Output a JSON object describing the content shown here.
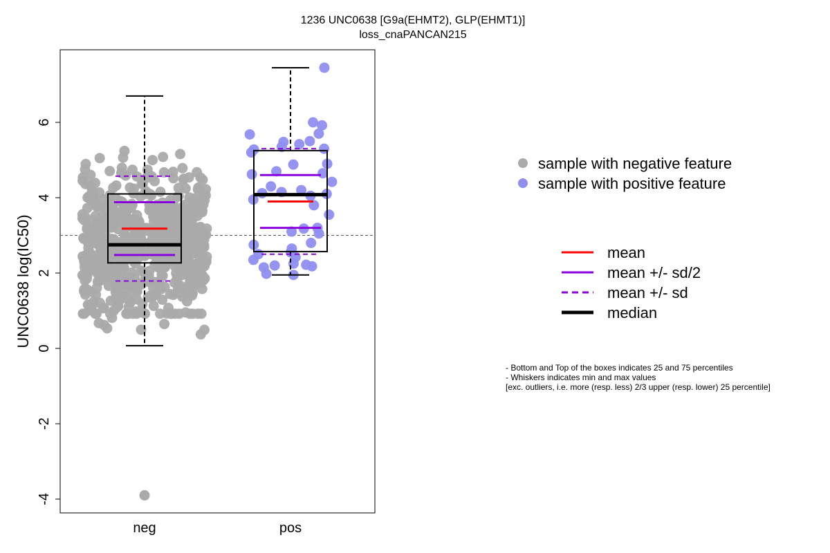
{
  "title_line1": "1236 UNC0638 [G9a(EHMT2), GLP(EHMT1)]",
  "title_line2": "loss_cnaPANCAN215",
  "chart_data": {
    "type": "box",
    "ylabel": "UNC0638 log(IC50)",
    "xlabel": "",
    "ylim": [
      -4.3,
      7.8
    ],
    "yticks": [
      -4,
      -2,
      0,
      2,
      4,
      6
    ],
    "reference_line": 3.0,
    "colors": {
      "neg": "#aaaaaa",
      "pos": "#8f8ff0",
      "mean": "#ff0000",
      "sd": "#8800dd",
      "median": "#000000"
    },
    "groups": [
      {
        "name": "neg",
        "whisker_min": 0.07,
        "q1": 2.27,
        "median": 2.75,
        "q3": 4.1,
        "whisker_max": 6.7,
        "mean": 3.18,
        "mean_plus_half_sd": 3.88,
        "mean_minus_half_sd": 2.48,
        "mean_plus_sd": 4.57,
        "mean_minus_sd": 1.79,
        "outliers": [
          -3.9
        ],
        "n_points": 650
      },
      {
        "name": "pos",
        "whisker_min": 1.95,
        "q1": 2.57,
        "median": 4.08,
        "q3": 5.25,
        "whisker_max": 7.45,
        "mean": 3.9,
        "mean_plus_half_sd": 4.6,
        "mean_minus_half_sd": 3.2,
        "mean_plus_sd": 5.3,
        "mean_minus_sd": 2.5,
        "points": [
          7.45,
          6.0,
          5.92,
          5.7,
          5.68,
          5.5,
          5.48,
          5.42,
          5.35,
          5.3,
          5.28,
          5.2,
          4.9,
          4.88,
          4.7,
          4.65,
          4.62,
          4.42,
          4.3,
          4.2,
          4.15,
          4.12,
          4.1,
          4.05,
          3.95,
          3.8,
          3.55,
          3.2,
          3.18,
          3.1,
          3.05,
          2.8,
          2.75,
          2.65,
          2.55,
          2.5,
          2.42,
          2.35,
          2.25,
          2.22,
          2.2,
          2.18,
          2.15,
          1.98,
          1.95
        ]
      }
    ]
  },
  "legend_points": [
    {
      "label": "sample with negative feature",
      "color": "#aaaaaa"
    },
    {
      "label": "sample with positive feature",
      "color": "#8f8ff0"
    }
  ],
  "legend_lines": [
    {
      "label": "mean",
      "color": "#ff0000",
      "style": "solid"
    },
    {
      "label": "mean +/- sd/2",
      "color": "#8800dd",
      "style": "solid"
    },
    {
      "label": "mean +/- sd",
      "color": "#8800dd",
      "style": "dashed"
    },
    {
      "label": "median",
      "color": "#000000",
      "style": "thick"
    }
  ],
  "notes": [
    "- Bottom and Top of the boxes indicates 25 and 75 percentiles",
    "- Whiskers indicates min and max values",
    "[exc. outliers, i.e. more (resp. less) 2/3 upper (resp. lower) 25 percentile]"
  ]
}
